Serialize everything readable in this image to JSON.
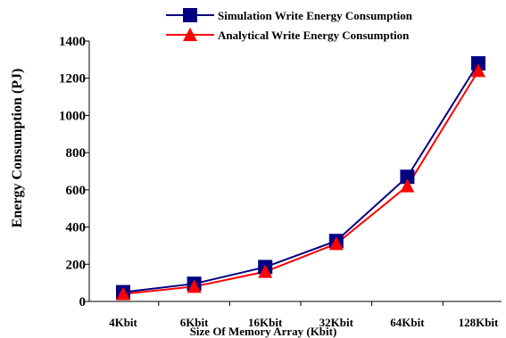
{
  "chart_data": {
    "type": "line",
    "title": "",
    "xlabel": "Size Of Memory Array (Kbit)",
    "ylabel": "Energy Consumption (PJ)",
    "categories": [
      "4Kbit",
      "6Kbit",
      "16Kbit",
      "32Kbit",
      "64Kbit",
      "128Kbit"
    ],
    "ylim": [
      0,
      1400
    ],
    "yticks": [
      0,
      200,
      400,
      600,
      800,
      1000,
      1200,
      1400
    ],
    "ytick_labels": [
      "0",
      "200",
      "400",
      "600",
      "800",
      "1000",
      "1200",
      "1400"
    ],
    "grid": false,
    "legend_position": "top-center",
    "series": [
      {
        "name": "Simulation Write Energy Consumption",
        "values": [
          50,
          95,
          185,
          325,
          670,
          1280
        ],
        "color": "#000080",
        "marker": "square"
      },
      {
        "name": "Analytical Write Energy Consumption",
        "values": [
          40,
          80,
          160,
          310,
          620,
          1240
        ],
        "color": "#ff0000",
        "marker": "triangle"
      }
    ]
  }
}
